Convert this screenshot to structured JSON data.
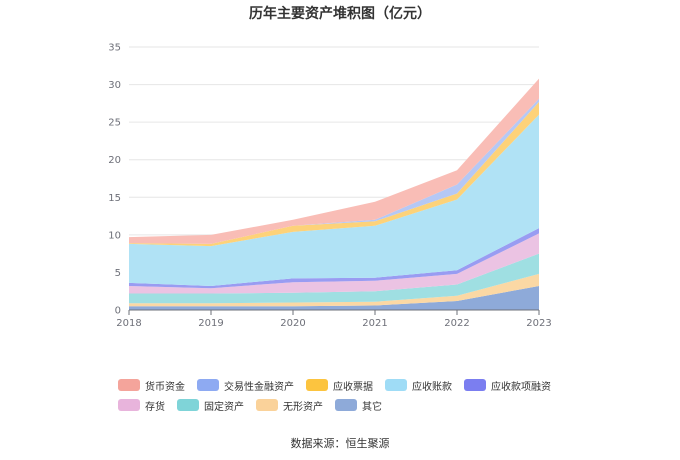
{
  "chart_data": {
    "type": "area",
    "stacked": true,
    "title": "历年主要资产堆积图（亿元）",
    "categories": [
      "2018",
      "2019",
      "2020",
      "2021",
      "2022",
      "2023"
    ],
    "ylim": [
      0,
      35
    ],
    "yticks": [
      "0",
      "5",
      "10",
      "15",
      "20",
      "25",
      "30",
      "35"
    ],
    "series": [
      {
        "name": "其它",
        "color": "#8eaad9",
        "values": [
          0.5,
          0.5,
          0.5,
          0.6,
          1.2,
          3.2
        ]
      },
      {
        "name": "无形资产",
        "color": "#fbd8a4",
        "values": [
          0.4,
          0.4,
          0.5,
          0.5,
          0.7,
          1.6
        ]
      },
      {
        "name": "固定资产",
        "color": "#9fdfe2",
        "values": [
          1.3,
          1.3,
          1.3,
          1.4,
          1.5,
          2.7
        ]
      },
      {
        "name": "存货",
        "color": "#ebc3e3",
        "values": [
          1.0,
          0.7,
          1.4,
          1.4,
          1.4,
          2.7
        ]
      },
      {
        "name": "应收款项融资",
        "color": "#999cf2",
        "values": [
          0.4,
          0.3,
          0.5,
          0.4,
          0.5,
          0.7
        ]
      },
      {
        "name": "应收账款",
        "color": "#b0e2f5",
        "values": [
          5.2,
          5.3,
          6.2,
          6.9,
          9.4,
          15.1
        ]
      },
      {
        "name": "应收票据",
        "color": "#fdd279",
        "values": [
          0.1,
          0.3,
          0.8,
          0.6,
          0.8,
          1.7
        ]
      },
      {
        "name": "交易性金融资产",
        "color": "#b5c8f5",
        "values": [
          0,
          0,
          0,
          0.2,
          1.2,
          0.4
        ]
      },
      {
        "name": "货币资金",
        "color": "#f9bdb6",
        "values": [
          0.8,
          1.2,
          0.8,
          2.4,
          1.9,
          2.7
        ]
      }
    ]
  },
  "legend": [
    {
      "label": "货币资金",
      "color": "#f4a49b"
    },
    {
      "label": "交易性金融资产",
      "color": "#8eaaf2"
    },
    {
      "label": "应收票据",
      "color": "#fcc43f"
    },
    {
      "label": "应收账款",
      "color": "#9fdcf6"
    },
    {
      "label": "应收款项融资",
      "color": "#7b7ef0"
    },
    {
      "label": "存货",
      "color": "#e8b4dc"
    },
    {
      "label": "固定资产",
      "color": "#7fd4d8"
    },
    {
      "label": "无形资产",
      "color": "#fad29a"
    },
    {
      "label": "其它",
      "color": "#8eaad9"
    }
  ],
  "source": "数据来源：恒生聚源"
}
